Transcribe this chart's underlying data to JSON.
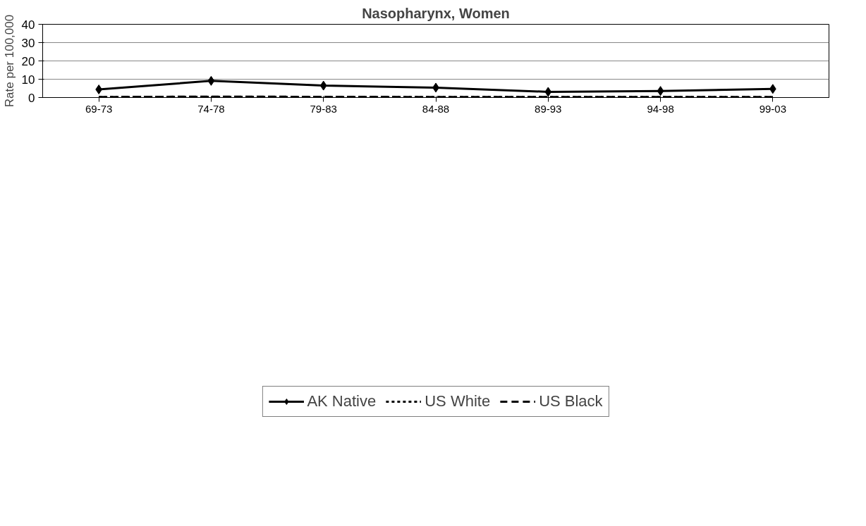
{
  "chart_data": {
    "type": "line",
    "title": "Nasopharynx, Women",
    "ylabel": "Rate per 100,000",
    "categories": [
      "69-73",
      "74-78",
      "79-83",
      "84-88",
      "89-93",
      "94-98",
      "99-03"
    ],
    "series": [
      {
        "name": "AK Native",
        "color": "#000000",
        "marker": "diamond",
        "line_style": "solid",
        "values": [
          4.4,
          9.1,
          6.5,
          5.4,
          3.1,
          3.6,
          4.7
        ]
      },
      {
        "name": "US White",
        "color": "#000000",
        "marker": "none",
        "line_style": "dotted",
        "values": [
          0.3,
          0.4,
          0.3,
          0.3,
          0.3,
          0.3,
          0.2
        ]
      },
      {
        "name": "US Black",
        "color": "#000000",
        "marker": "none",
        "line_style": "dashed",
        "values": [
          0.3,
          0.5,
          0.4,
          0.3,
          0.3,
          0.3,
          0.3
        ]
      }
    ],
    "ylim": [
      0,
      40
    ],
    "yticks": [
      0,
      10,
      20,
      30,
      40
    ],
    "grid": "y",
    "legend": "bottom"
  }
}
